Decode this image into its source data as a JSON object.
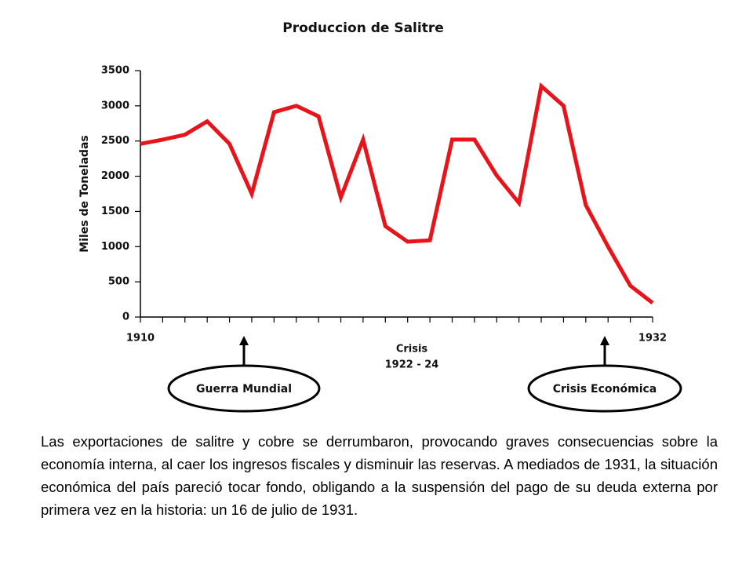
{
  "chart_data": {
    "type": "line",
    "title": "Produccion de Salitre",
    "y_label": "Miles de Toneladas",
    "categories": [
      "1910",
      null,
      null,
      null,
      null,
      null,
      null,
      null,
      null,
      null,
      null,
      null,
      null,
      null,
      null,
      null,
      null,
      null,
      null,
      null,
      null,
      null,
      null,
      "1932"
    ],
    "series": [
      {
        "name": "Produccion",
        "color": "#e8141b",
        "values": [
          2460,
          2520,
          2590,
          2780,
          2460,
          1750,
          2910,
          3000,
          2850,
          1700,
          2520,
          1290,
          1070,
          1090,
          2520,
          2520,
          2010,
          1620,
          3280,
          3000,
          1590,
          1000,
          445,
          200
        ]
      }
    ],
    "ylim": [
      0,
      3500
    ],
    "yticks": [
      0,
      500,
      1000,
      1500,
      2000,
      2500,
      3000,
      3500
    ],
    "grid": false,
    "legend": false,
    "annotations": {
      "crisis": [
        "Crisis",
        "1922 - 24"
      ],
      "guerra": "Guerra Mundial",
      "economica": "Crisis Económica"
    }
  },
  "text": "Las exportaciones de salitre y cobre se derrumbaron, provocando graves consecuencias sobre la economía interna, al caer los ingresos fiscales y disminuir las reservas. A mediados de 1931, la situación económica del país pareció tocar fondo, obligando a la suspensión del pago de su deuda externa por primera vez en la historia: un 16 de julio de 1931."
}
